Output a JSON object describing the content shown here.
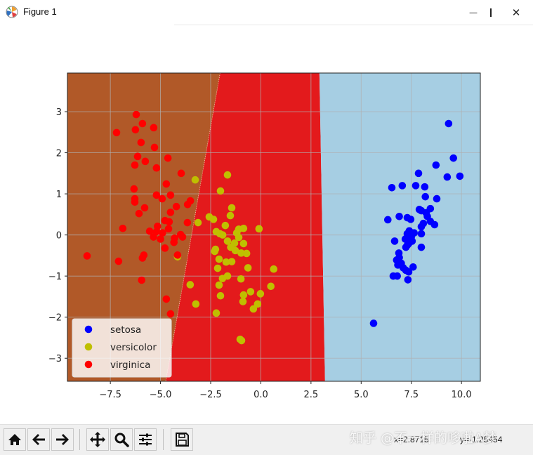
{
  "window": {
    "title": "Figure 1",
    "controls": {
      "minimize": "—",
      "maximize": "☐",
      "close": "✕"
    }
  },
  "toolbar": {
    "buttons": [
      {
        "name": "home",
        "icon": "home-icon"
      },
      {
        "name": "back",
        "icon": "arrow-left-icon"
      },
      {
        "name": "forward",
        "icon": "arrow-right-icon"
      },
      {
        "name": "pan",
        "icon": "move-icon"
      },
      {
        "name": "zoom",
        "icon": "magnifier-icon"
      },
      {
        "name": "configure-subplots",
        "icon": "sliders-icon"
      },
      {
        "name": "save",
        "icon": "floppy-disk-icon"
      }
    ],
    "cursor_x": "x=2.8715",
    "cursor_y": "y=-1.25454",
    "watermark": "知乎 @不一样的哆啦A梦"
  },
  "colors": {
    "region_virginica": "#b15928",
    "region_versicolor": "#e31a1c",
    "region_setosa": "#a6cee3",
    "marker_setosa": "#0000ff",
    "marker_versicolor": "#bfbf00",
    "marker_virginica": "#ff0000"
  },
  "chart_data": {
    "type": "scatter",
    "title": "",
    "xlabel": "",
    "ylabel": "",
    "xlim": [
      -9.64,
      10.94
    ],
    "ylim": [
      -3.56,
      3.94
    ],
    "grid": true,
    "legend_position": "lower left",
    "xticks": [
      -7.5,
      -5.0,
      -2.5,
      0.0,
      2.5,
      5.0,
      7.5,
      10.0
    ],
    "xtick_labels": [
      "−7.5",
      "−5.0",
      "−2.5",
      "0.0",
      "2.5",
      "5.0",
      "7.5",
      "10.0"
    ],
    "yticks": [
      3,
      2,
      1,
      0,
      -1,
      -2,
      -3
    ],
    "ytick_labels": [
      "3",
      "2",
      "1",
      "0",
      "−1",
      "−2",
      "−3"
    ],
    "decision_regions": [
      {
        "class": "virginica",
        "color": "#b15928",
        "polygon": [
          [
            -9.64,
            3.94
          ],
          [
            -2.03,
            3.94
          ],
          [
            -4.74,
            -3.56
          ],
          [
            -9.64,
            -3.56
          ]
        ]
      },
      {
        "class": "versicolor",
        "color": "#e31a1c",
        "polygon": [
          [
            -2.03,
            3.94
          ],
          [
            2.92,
            3.94
          ],
          [
            3.2,
            -3.56
          ],
          [
            -4.74,
            -3.56
          ]
        ]
      },
      {
        "class": "setosa",
        "color": "#a6cee3",
        "polygon": [
          [
            2.92,
            3.94
          ],
          [
            10.94,
            3.94
          ],
          [
            10.94,
            -3.56
          ],
          [
            3.2,
            -3.56
          ]
        ]
      }
    ],
    "series": [
      {
        "name": "setosa",
        "color": "#0000ff",
        "points": [
          [
            9.36,
            2.71
          ],
          [
            9.6,
            1.87
          ],
          [
            8.73,
            1.7
          ],
          [
            9.92,
            1.43
          ],
          [
            9.29,
            1.41
          ],
          [
            7.86,
            1.5
          ],
          [
            6.53,
            1.15
          ],
          [
            7.05,
            1.2
          ],
          [
            7.72,
            1.2
          ],
          [
            8.17,
            1.17
          ],
          [
            8.2,
            0.93
          ],
          [
            8.77,
            0.88
          ],
          [
            8.45,
            0.64
          ],
          [
            8.0,
            0.59
          ],
          [
            8.24,
            0.54
          ],
          [
            6.33,
            0.37
          ],
          [
            6.9,
            0.45
          ],
          [
            7.3,
            0.42
          ],
          [
            7.47,
            0.38
          ],
          [
            8.45,
            0.33
          ],
          [
            8.66,
            0.25
          ],
          [
            8.1,
            0.28
          ],
          [
            8.0,
            0.2
          ],
          [
            7.3,
            0.03
          ],
          [
            7.64,
            0.05
          ],
          [
            8.0,
            0.03
          ],
          [
            6.67,
            -0.15
          ],
          [
            7.37,
            -0.21
          ],
          [
            7.23,
            -0.3
          ],
          [
            8.0,
            -0.3
          ],
          [
            7.54,
            -0.15
          ],
          [
            6.88,
            -0.44
          ],
          [
            6.77,
            -0.61
          ],
          [
            7.0,
            -0.69
          ],
          [
            6.83,
            -0.73
          ],
          [
            7.59,
            -0.78
          ],
          [
            7.23,
            -0.86
          ],
          [
            7.37,
            -0.9
          ],
          [
            6.6,
            -1.0
          ],
          [
            6.8,
            -1.0
          ],
          [
            7.33,
            -1.09
          ],
          [
            5.62,
            -2.15
          ],
          [
            7.9,
            0.62
          ],
          [
            7.4,
            0.1
          ],
          [
            7.2,
            -0.1
          ],
          [
            6.9,
            -0.55
          ],
          [
            7.1,
            -0.8
          ],
          [
            7.5,
            -0.05
          ],
          [
            8.3,
            0.45
          ],
          [
            7.3,
            -0.25
          ]
        ]
      },
      {
        "name": "versicolor",
        "color": "#bfbf00",
        "points": [
          [
            -3.27,
            1.34
          ],
          [
            -1.66,
            1.46
          ],
          [
            -2.01,
            1.07
          ],
          [
            -1.45,
            0.66
          ],
          [
            -1.52,
            0.47
          ],
          [
            -2.57,
            0.44
          ],
          [
            -2.36,
            0.38
          ],
          [
            -3.13,
            0.3
          ],
          [
            -1.77,
            0.23
          ],
          [
            -1.1,
            0.14
          ],
          [
            -0.86,
            0.16
          ],
          [
            -0.09,
            0.15
          ],
          [
            -2.22,
            0.08
          ],
          [
            -2.04,
            0.03
          ],
          [
            -1.66,
            -0.15
          ],
          [
            -1.31,
            -0.2
          ],
          [
            -1.1,
            -0.06
          ],
          [
            -0.86,
            -0.21
          ],
          [
            -2.26,
            -0.35
          ],
          [
            -1.27,
            -0.38
          ],
          [
            -0.98,
            -0.44
          ],
          [
            -0.71,
            -0.45
          ],
          [
            -2.08,
            -0.59
          ],
          [
            -1.73,
            -0.66
          ],
          [
            -1.45,
            -0.65
          ],
          [
            -0.64,
            -0.8
          ],
          [
            0.64,
            -0.83
          ],
          [
            -2.15,
            -0.81
          ],
          [
            -1.66,
            -1.0
          ],
          [
            -1.91,
            -1.06
          ],
          [
            -0.99,
            -1.07
          ],
          [
            -3.52,
            -1.21
          ],
          [
            -2.08,
            -1.22
          ],
          [
            0.5,
            -1.25
          ],
          [
            -0.51,
            -1.38
          ],
          [
            -0.86,
            -1.46
          ],
          [
            -0.02,
            -1.43
          ],
          [
            -2.01,
            -1.48
          ],
          [
            -0.89,
            -1.62
          ],
          [
            -0.16,
            -1.68
          ],
          [
            -0.37,
            -1.8
          ],
          [
            -3.24,
            -1.68
          ],
          [
            -2.22,
            -1.9
          ],
          [
            -1.03,
            -2.54
          ],
          [
            -0.96,
            -2.57
          ],
          [
            -1.2,
            0.05
          ],
          [
            -2.3,
            -0.4
          ],
          [
            -1.5,
            -0.3
          ],
          [
            -4.15,
            -0.53
          ],
          [
            -1.9,
            0.0
          ]
        ]
      },
      {
        "name": "virginica",
        "color": "#ff0000",
        "points": [
          [
            -6.21,
            2.93
          ],
          [
            -5.9,
            2.71
          ],
          [
            -7.19,
            2.49
          ],
          [
            -6.25,
            2.56
          ],
          [
            -5.34,
            2.61
          ],
          [
            -5.97,
            2.25
          ],
          [
            -5.3,
            2.13
          ],
          [
            -4.63,
            1.87
          ],
          [
            -6.14,
            1.91
          ],
          [
            -5.76,
            1.79
          ],
          [
            -6.28,
            1.7
          ],
          [
            -5.2,
            1.63
          ],
          [
            -3.97,
            1.5
          ],
          [
            -4.71,
            1.24
          ],
          [
            -6.32,
            1.12
          ],
          [
            -5.2,
            0.97
          ],
          [
            -4.5,
            0.97
          ],
          [
            -4.92,
            0.88
          ],
          [
            -6.28,
            0.88
          ],
          [
            -6.28,
            0.8
          ],
          [
            -3.51,
            0.83
          ],
          [
            -3.65,
            0.74
          ],
          [
            -4.21,
            0.69
          ],
          [
            -5.79,
            0.66
          ],
          [
            -4.5,
            0.55
          ],
          [
            -6.07,
            0.52
          ],
          [
            -4.78,
            0.35
          ],
          [
            -4.57,
            0.32
          ],
          [
            -3.66,
            0.3
          ],
          [
            -6.88,
            0.16
          ],
          [
            -5.54,
            0.09
          ],
          [
            -5.15,
            0.21
          ],
          [
            -4.0,
            0.01
          ],
          [
            -8.66,
            -0.51
          ],
          [
            -7.09,
            -0.64
          ],
          [
            -5.83,
            -0.49
          ],
          [
            -5.9,
            -0.56
          ],
          [
            -5.94,
            -1.1
          ],
          [
            -4.78,
            -0.32
          ],
          [
            -4.33,
            -0.18
          ],
          [
            -4.15,
            -0.49
          ],
          [
            -4.71,
            -1.56
          ],
          [
            -4.5,
            -1.92
          ],
          [
            -5.0,
            -0.1
          ],
          [
            -4.9,
            0.05
          ],
          [
            -5.2,
            0.08
          ],
          [
            -4.3,
            -0.08
          ],
          [
            -5.35,
            -0.05
          ],
          [
            -3.9,
            -0.05
          ],
          [
            -4.6,
            0.15
          ]
        ]
      }
    ],
    "legend": [
      {
        "label": "setosa",
        "color": "#0000ff"
      },
      {
        "label": "versicolor",
        "color": "#bfbf00"
      },
      {
        "label": "virginica",
        "color": "#ff0000"
      }
    ]
  }
}
